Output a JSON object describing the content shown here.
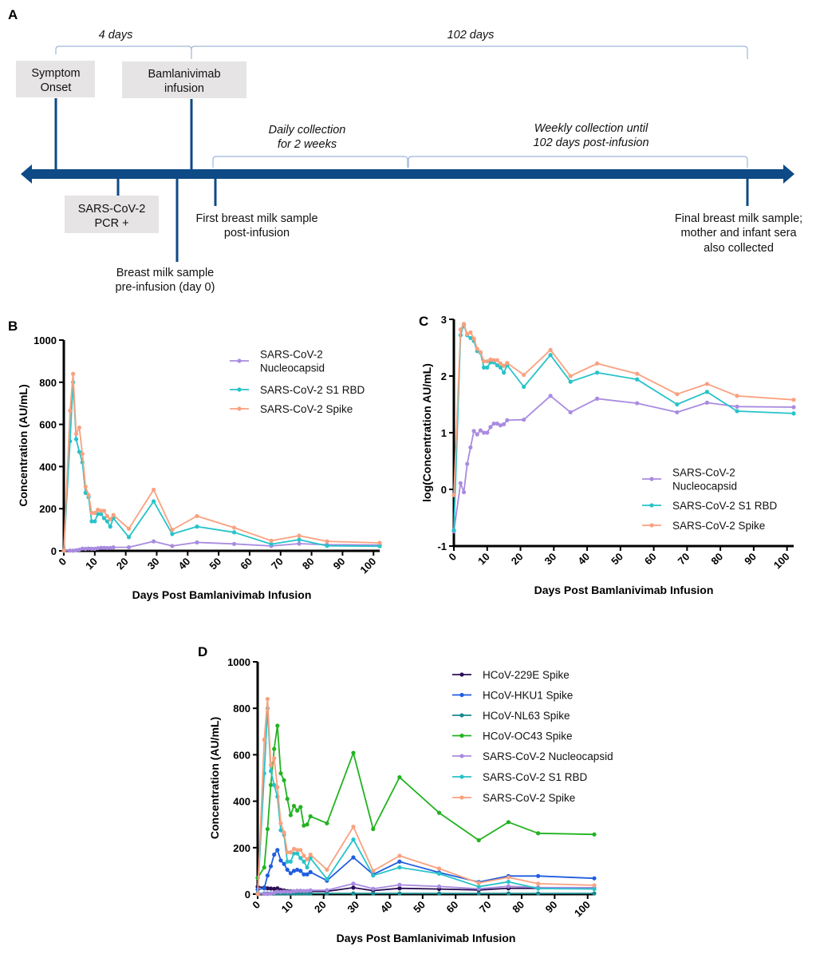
{
  "panel_labels": {
    "a": "A",
    "b": "B",
    "c": "C",
    "d": "D"
  },
  "timeline": {
    "span_1": "4 days",
    "span_2": "102 days",
    "symptom_onset": [
      "Symptom",
      "Onset"
    ],
    "infusion": [
      "Bamlanivimab",
      "infusion"
    ],
    "pcr": [
      "SARS-CoV-2",
      "PCR +"
    ],
    "pre_infusion": [
      "Breast milk sample",
      "pre-infusion (day 0)"
    ],
    "first_sample": [
      "First breast milk sample",
      "post-infusion"
    ],
    "daily": [
      "Daily collection",
      "for 2 weeks"
    ],
    "weekly": [
      "Weekly collection until",
      "102 days post-infusion"
    ],
    "final": [
      "Final breast milk sample;",
      "mother and infant sera",
      "also collected"
    ],
    "colors": {
      "axis": "#0d4a86",
      "box": "#e6e4e4",
      "bracket": "#9db6dc"
    }
  },
  "chart_data": [
    {
      "id": "B",
      "type": "line",
      "title": "",
      "xlabel": "Days Post Bamlanivimab Infusion",
      "ylabel": "Concentration (AU/mL)",
      "xlim": [
        0,
        102
      ],
      "ylim": [
        0,
        1000
      ],
      "xticks": [
        "0",
        "10",
        "20",
        "30",
        "40",
        "50",
        "60",
        "70",
        "80",
        "90",
        "100"
      ],
      "yticks": [
        "0",
        "200",
        "400",
        "600",
        "800",
        "1000"
      ],
      "legend_position": "top-right",
      "x": [
        0,
        2,
        3,
        4,
        5,
        6,
        7,
        8,
        9,
        10,
        11,
        12,
        13,
        14,
        15,
        16,
        21,
        29,
        35,
        43,
        55,
        67,
        76,
        85,
        102
      ],
      "series": [
        {
          "name": "SARS-CoV-2 Nucleocapsid",
          "legend_lines": [
            "SARS-CoV-2",
            "Nucleocapsid"
          ],
          "color": "#a98be0",
          "values": [
            0.2,
            1.3,
            0.9,
            2.8,
            5.5,
            10.7,
            9.4,
            11,
            10,
            10,
            12.5,
            14.5,
            14.5,
            13.5,
            14,
            16.5,
            17,
            45,
            23,
            40,
            33,
            23,
            34,
            29,
            28
          ]
        },
        {
          "name": "SARS-CoV-2 S1 RBD",
          "legend_lines": [
            "SARS-CoV-2 S1 RBD"
          ],
          "color": "#27c3c9",
          "values": [
            0,
            520,
            800,
            530,
            470,
            420,
            275,
            255,
            140,
            140,
            175,
            175,
            155,
            140,
            115,
            155,
            65,
            235,
            80,
            115,
            88,
            32,
            53,
            24,
            22
          ]
        },
        {
          "name": "SARS-CoV-2 Spike",
          "legend_lines": [
            "SARS-CoV-2 Spike"
          ],
          "color": "#f9a17f",
          "values": [
            0,
            665,
            840,
            555,
            585,
            460,
            305,
            265,
            180,
            180,
            195,
            190,
            190,
            165,
            150,
            170,
            105,
            290,
            100,
            165,
            110,
            48,
            72,
            45,
            38
          ]
        }
      ]
    },
    {
      "id": "C",
      "type": "line",
      "title": "",
      "xlabel": "Days Post Bamlanivimab Infusion",
      "ylabel": "log(Concentration AU/mL)",
      "xlim": [
        0,
        102
      ],
      "ylim": [
        -1,
        3
      ],
      "xticks": [
        "0",
        "10",
        "20",
        "30",
        "40",
        "50",
        "60",
        "70",
        "80",
        "90",
        "100"
      ],
      "yticks": [
        "-1",
        "0",
        "1",
        "2",
        "3"
      ],
      "legend_position": "bottom-right",
      "x": [
        0,
        2,
        3,
        4,
        5,
        6,
        7,
        8,
        9,
        10,
        11,
        12,
        13,
        14,
        15,
        16,
        21,
        29,
        35,
        43,
        55,
        67,
        76,
        85,
        102
      ],
      "series": [
        {
          "name": "SARS-CoV-2 Nucleocapsid",
          "legend_lines": [
            "SARS-CoV-2",
            "Nucleocapsid"
          ],
          "color": "#a98be0",
          "values": [
            -0.74,
            0.11,
            -0.05,
            0.45,
            0.74,
            1.03,
            0.97,
            1.04,
            1.0,
            1.0,
            1.1,
            1.16,
            1.16,
            1.13,
            1.15,
            1.22,
            1.23,
            1.65,
            1.36,
            1.6,
            1.52,
            1.36,
            1.53,
            1.46,
            1.45
          ]
        },
        {
          "name": "SARS-CoV-2 S1 RBD",
          "legend_lines": [
            "SARS-CoV-2 S1 RBD"
          ],
          "color": "#27c3c9",
          "values": [
            -0.72,
            2.72,
            2.9,
            2.72,
            2.67,
            2.62,
            2.44,
            2.41,
            2.15,
            2.15,
            2.24,
            2.24,
            2.19,
            2.15,
            2.06,
            2.19,
            1.81,
            2.37,
            1.9,
            2.06,
            1.94,
            1.5,
            1.72,
            1.38,
            1.34
          ]
        },
        {
          "name": "SARS-CoV-2 Spike",
          "legend_lines": [
            "SARS-CoV-2 Spike"
          ],
          "color": "#f9a17f",
          "values": [
            -0.1,
            2.82,
            2.92,
            2.74,
            2.77,
            2.66,
            2.48,
            2.42,
            2.26,
            2.26,
            2.29,
            2.28,
            2.28,
            2.22,
            2.18,
            2.23,
            2.02,
            2.46,
            2.0,
            2.22,
            2.04,
            1.68,
            1.86,
            1.65,
            1.58
          ]
        }
      ]
    },
    {
      "id": "D",
      "type": "line",
      "title": "",
      "xlabel": "Days Post Bamlanivimab Infusion",
      "ylabel": "Concentration (AU/mL)",
      "xlim": [
        0,
        102
      ],
      "ylim": [
        0,
        1000
      ],
      "xticks": [
        "0",
        "10",
        "20",
        "30",
        "40",
        "50",
        "60",
        "70",
        "80",
        "90",
        "100"
      ],
      "yticks": [
        "0",
        "200",
        "400",
        "600",
        "800",
        "1000"
      ],
      "legend_position": "top-right",
      "x": [
        0,
        2,
        3,
        4,
        5,
        6,
        7,
        8,
        9,
        10,
        11,
        12,
        13,
        14,
        15,
        16,
        21,
        29,
        35,
        43,
        55,
        67,
        76,
        85,
        102
      ],
      "series": [
        {
          "name": "HCoV-229E Spike",
          "legend_lines": [
            "HCoV-229E Spike"
          ],
          "color": "#2b0f55",
          "values": [
            32,
            28,
            25,
            24,
            23,
            25,
            18,
            16,
            13,
            12,
            12,
            13,
            12,
            12,
            11,
            12,
            12,
            28,
            15,
            25,
            22,
            18,
            25,
            25,
            25
          ]
        },
        {
          "name": "HCoV-HKU1 Spike",
          "legend_lines": [
            "HCoV-HKU1 Spike"
          ],
          "color": "#1f5ee0",
          "values": [
            20,
            25,
            80,
            120,
            170,
            190,
            145,
            130,
            105,
            90,
            100,
            105,
            100,
            85,
            85,
            95,
            58,
            158,
            85,
            140,
            93,
            52,
            78,
            78,
            68
          ]
        },
        {
          "name": "HCoV-NL63 Spike",
          "legend_lines": [
            "HCoV-NL63 Spike"
          ],
          "color": "#1a8a8f",
          "values": [
            3,
            3,
            3,
            3,
            3,
            3,
            3,
            3,
            3,
            3,
            3,
            3,
            3,
            3,
            3,
            3,
            3,
            3,
            3,
            3,
            3,
            3,
            3,
            3,
            3
          ]
        },
        {
          "name": "HCoV-OC43 Spike",
          "legend_lines": [
            "HCoV-OC43 Spike"
          ],
          "color": "#22b320",
          "values": [
            70,
            115,
            280,
            470,
            625,
            725,
            520,
            490,
            410,
            340,
            380,
            360,
            375,
            295,
            300,
            335,
            305,
            608,
            280,
            503,
            350,
            232,
            310,
            262,
            257
          ]
        },
        {
          "name": "SARS-CoV-2 Nucleocapsid",
          "legend_lines": [
            "SARS-CoV-2 Nucleocapsid"
          ],
          "color": "#a98be0",
          "values": [
            0.2,
            1.3,
            0.9,
            2.8,
            5.5,
            10.7,
            9.4,
            11,
            10,
            10,
            12.5,
            14.5,
            14.5,
            13.5,
            14,
            16.5,
            17,
            45,
            23,
            40,
            33,
            23,
            34,
            29,
            28
          ]
        },
        {
          "name": "SARS-CoV-2 S1 RBD",
          "legend_lines": [
            "SARS-CoV-2 S1 RBD"
          ],
          "color": "#27c3c9",
          "values": [
            0,
            520,
            800,
            530,
            470,
            420,
            275,
            255,
            140,
            140,
            175,
            175,
            155,
            140,
            115,
            155,
            65,
            235,
            80,
            115,
            88,
            32,
            53,
            24,
            22
          ]
        },
        {
          "name": "SARS-CoV-2 Spike",
          "legend_lines": [
            "SARS-CoV-2 Spike"
          ],
          "color": "#f9a17f",
          "values": [
            0,
            665,
            840,
            555,
            585,
            460,
            305,
            265,
            180,
            180,
            195,
            190,
            190,
            165,
            150,
            170,
            105,
            290,
            100,
            165,
            110,
            48,
            72,
            45,
            38
          ]
        }
      ]
    }
  ]
}
